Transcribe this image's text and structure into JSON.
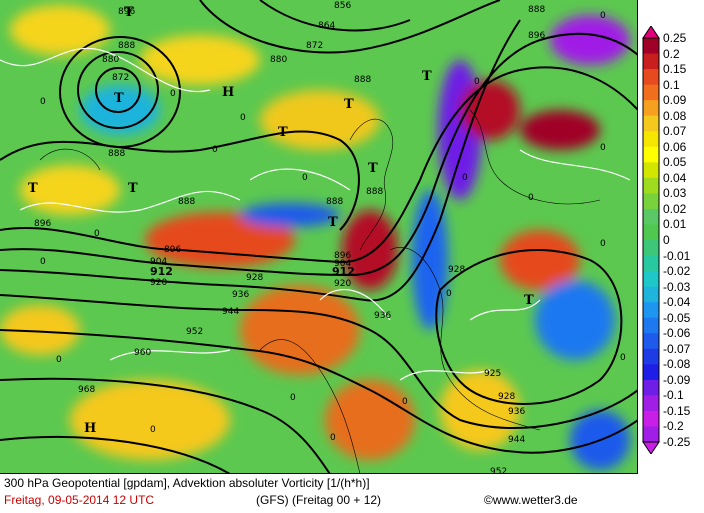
{
  "title_line": "300 hPa Geopotential [gpdam], Advektion absoluter Vorticity [1/(h*h)]",
  "date_line": "Freitag, 09-05-2014  12 UTC",
  "model_line": "(GFS)  (Freitag 00 + 12)",
  "copyright_line": "©www.wetter3.de",
  "legend": {
    "labels": [
      "0.25",
      "0.2",
      "0.15",
      "0.1",
      "0.09",
      "0.08",
      "0.07",
      "0.06",
      "0.05",
      "0.04",
      "0.03",
      "0.02",
      "0.01",
      "0",
      "-0.01",
      "-0.02",
      "-0.03",
      "-0.04",
      "-0.05",
      "-0.06",
      "-0.07",
      "-0.08",
      "-0.09",
      "-0.1",
      "-0.15",
      "-0.2",
      "-0.25"
    ],
    "colors": [
      "#e0007a",
      "#a00028",
      "#c81e1e",
      "#e64a1e",
      "#f06e1e",
      "#f5a01e",
      "#f5c81e",
      "#f5e600",
      "#ffff00",
      "#d2e600",
      "#a0dc1e",
      "#78d23c",
      "#5ac864",
      "#50c850",
      "#3cc878",
      "#28c8a0",
      "#1ec8c8",
      "#1eb4dc",
      "#1e96f0",
      "#1e78f0",
      "#1e5aeb",
      "#1e3ce6",
      "#1e1ee6",
      "#6e1ee6",
      "#a01ee6",
      "#c81ee6",
      "#a01ee6"
    ],
    "min": "-0.25",
    "max": "0.25"
  },
  "map": {
    "contour_labels": [
      "896",
      "888",
      "880",
      "872",
      "864",
      "856",
      "896",
      "888",
      "880",
      "872",
      "888",
      "896",
      "888",
      "888",
      "896",
      "904",
      "912",
      "920",
      "928",
      "912",
      "904",
      "896",
      "888",
      "888",
      "920",
      "936",
      "944",
      "952",
      "960",
      "968",
      "928",
      "936",
      "944",
      "952",
      "928",
      "936",
      "925"
    ],
    "advection_zero_labels": [
      "0",
      "0",
      "0",
      "0",
      "0",
      "0",
      "0",
      "0",
      "0",
      "0",
      "0",
      "0",
      "0",
      "0",
      "0",
      "0",
      "0",
      "0",
      "0",
      "0"
    ],
    "pressure_centers": [
      "T",
      "H",
      "T",
      "T",
      "T",
      "T",
      "T",
      "T",
      "T",
      "H",
      "T",
      "T"
    ]
  }
}
